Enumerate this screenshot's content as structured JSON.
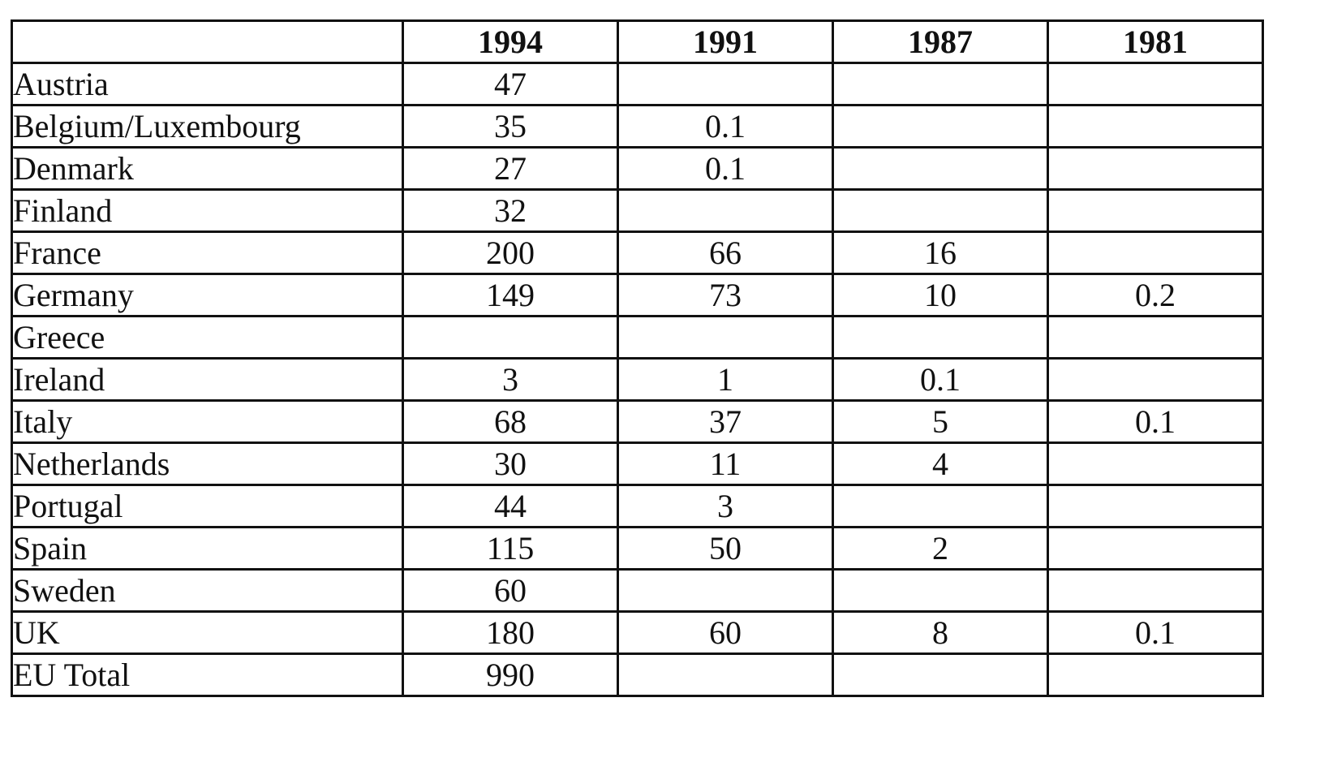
{
  "chart_data": {
    "type": "table",
    "columns": [
      "",
      "1994",
      "1991",
      "1987",
      "1981"
    ],
    "rows": [
      {
        "label": "Austria",
        "values": [
          "47",
          "",
          "",
          ""
        ]
      },
      {
        "label": "Belgium/Luxembourg",
        "values": [
          "35",
          "0.1",
          "",
          ""
        ]
      },
      {
        "label": "Denmark",
        "values": [
          "27",
          "0.1",
          "",
          ""
        ]
      },
      {
        "label": "Finland",
        "values": [
          "32",
          "",
          "",
          ""
        ]
      },
      {
        "label": "France",
        "values": [
          "200",
          "66",
          "16",
          ""
        ]
      },
      {
        "label": "Germany",
        "values": [
          "149",
          "73",
          "10",
          "0.2"
        ]
      },
      {
        "label": "Greece",
        "values": [
          "",
          "",
          "",
          ""
        ]
      },
      {
        "label": "Ireland",
        "values": [
          "3",
          "1",
          "0.1",
          ""
        ]
      },
      {
        "label": "Italy",
        "values": [
          "68",
          "37",
          "5",
          "0.1"
        ]
      },
      {
        "label": "Netherlands",
        "values": [
          "30",
          "11",
          "4",
          ""
        ]
      },
      {
        "label": "Portugal",
        "values": [
          "44",
          "3",
          "",
          ""
        ]
      },
      {
        "label": "Spain",
        "values": [
          "115",
          "50",
          "2",
          ""
        ]
      },
      {
        "label": "Sweden",
        "values": [
          "60",
          "",
          "",
          ""
        ]
      },
      {
        "label": "UK",
        "values": [
          "180",
          "60",
          "8",
          "0.1"
        ]
      },
      {
        "label": "EU Total",
        "values": [
          "990",
          "",
          "",
          ""
        ]
      }
    ]
  }
}
